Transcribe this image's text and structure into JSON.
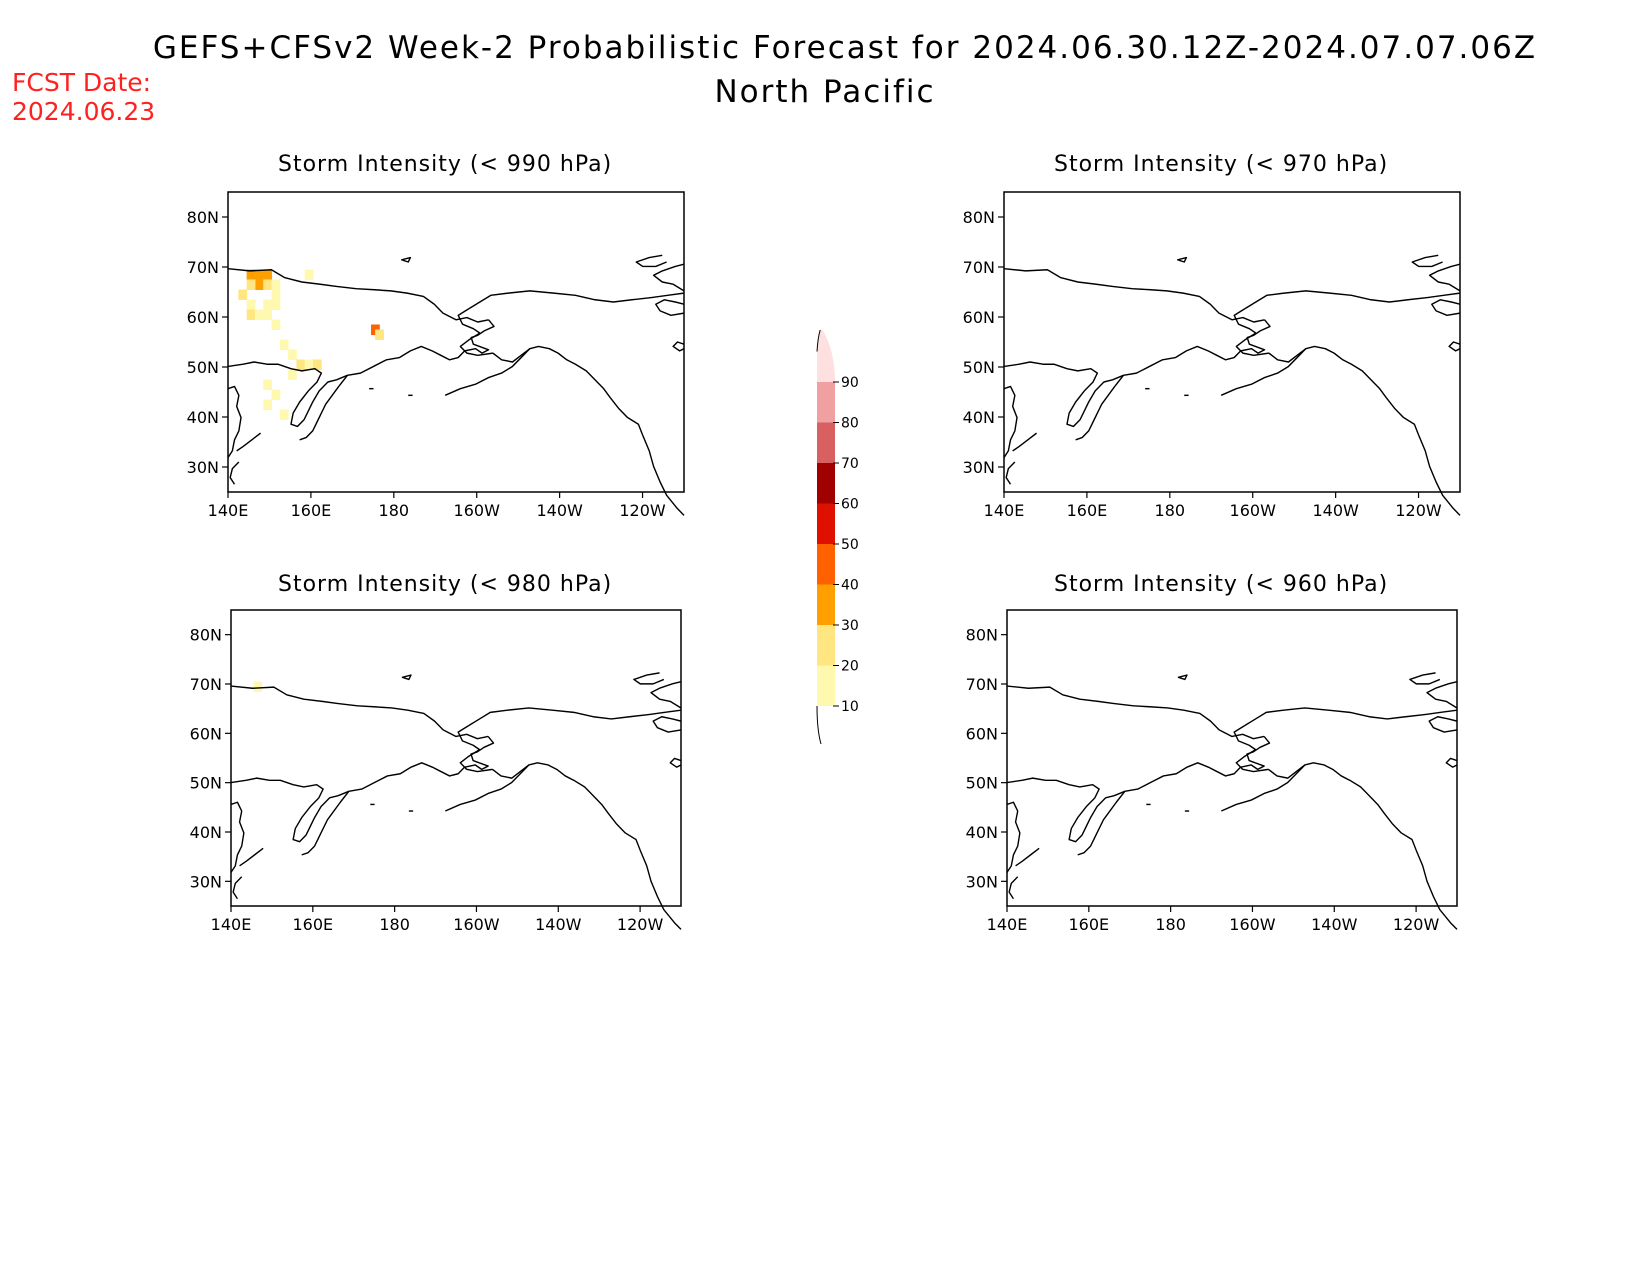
{
  "header": {
    "title_line1": "GEFS+CFSv2 Week-2 Probabilistic Forecast for 2024.06.30.12Z-2024.07.07.06Z",
    "title_line2": "North Pacific",
    "fcst_label": "FCST Date:",
    "fcst_value": "2024.06.23",
    "fcst_color": "#ff2020"
  },
  "panels": [
    {
      "id": "p990",
      "title": "Storm Intensity (< 990 hPa)"
    },
    {
      "id": "p970",
      "title": "Storm Intensity (< 970 hPa)"
    },
    {
      "id": "p980",
      "title": "Storm Intensity (< 980 hPa)"
    },
    {
      "id": "p960",
      "title": "Storm Intensity (< 960 hPa)"
    }
  ],
  "axes": {
    "lon_ticks": [
      "140E",
      "160E",
      "180",
      "160W",
      "140W",
      "120W"
    ],
    "lat_ticks": [
      "80N",
      "70N",
      "60N",
      "50N",
      "40N",
      "30N"
    ],
    "lon_range_deg_east": [
      140,
      250
    ],
    "lat_range": [
      25,
      85
    ]
  },
  "colorbar": {
    "levels": [
      "10",
      "20",
      "30",
      "40",
      "50",
      "60",
      "70",
      "80",
      "90"
    ],
    "colors": [
      "#fff9b0",
      "#ffe680",
      "#ffa000",
      "#ff6000",
      "#e01000",
      "#a00000",
      "#d86060",
      "#f0a0a0",
      "#ffe0e0"
    ]
  },
  "probability_cells_990": [
    {
      "lon": 145.5,
      "lat": 68.5,
      "bin": 2
    },
    {
      "lon": 147.5,
      "lat": 68.5,
      "bin": 2
    },
    {
      "lon": 149.5,
      "lat": 68.5,
      "bin": 2
    },
    {
      "lon": 147.5,
      "lat": 66.5,
      "bin": 2
    },
    {
      "lon": 145.5,
      "lat": 66.5,
      "bin": 1
    },
    {
      "lon": 149.5,
      "lat": 66.5,
      "bin": 1
    },
    {
      "lon": 151.5,
      "lat": 66.5,
      "bin": 0
    },
    {
      "lon": 151.5,
      "lat": 64.5,
      "bin": 0
    },
    {
      "lon": 143.5,
      "lat": 64.5,
      "bin": 1
    },
    {
      "lon": 145.5,
      "lat": 62.5,
      "bin": 0
    },
    {
      "lon": 149.5,
      "lat": 62.5,
      "bin": 0
    },
    {
      "lon": 151.5,
      "lat": 62.5,
      "bin": 0
    },
    {
      "lon": 145.5,
      "lat": 60.5,
      "bin": 1
    },
    {
      "lon": 147.5,
      "lat": 60.5,
      "bin": 0
    },
    {
      "lon": 149.5,
      "lat": 60.5,
      "bin": 0
    },
    {
      "lon": 151.5,
      "lat": 58.5,
      "bin": 0
    },
    {
      "lon": 159.5,
      "lat": 68.5,
      "bin": 0
    },
    {
      "lon": 153.5,
      "lat": 54.5,
      "bin": 0
    },
    {
      "lon": 155.5,
      "lat": 52.5,
      "bin": 0
    },
    {
      "lon": 157.5,
      "lat": 50.5,
      "bin": 1
    },
    {
      "lon": 159.5,
      "lat": 50.5,
      "bin": 0
    },
    {
      "lon": 161.5,
      "lat": 50.5,
      "bin": 1
    },
    {
      "lon": 155.5,
      "lat": 48.5,
      "bin": 0
    },
    {
      "lon": 149.5,
      "lat": 46.5,
      "bin": 0
    },
    {
      "lon": 151.5,
      "lat": 44.5,
      "bin": 0
    },
    {
      "lon": 149.5,
      "lat": 42.5,
      "bin": 0
    },
    {
      "lon": 153.5,
      "lat": 40.5,
      "bin": 0
    },
    {
      "lon": 175.5,
      "lat": 57.5,
      "bin": 3
    },
    {
      "lon": 176.5,
      "lat": 56.5,
      "bin": 1
    }
  ],
  "probability_cells_980": [
    {
      "lon": 146.5,
      "lat": 69.5,
      "bin": 0
    }
  ]
}
